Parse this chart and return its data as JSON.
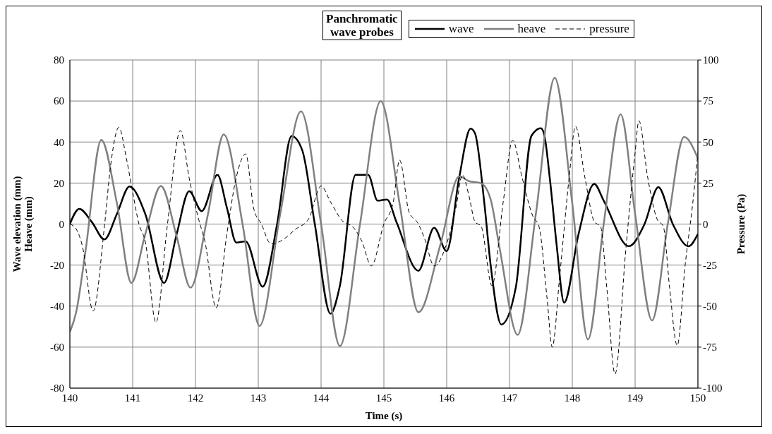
{
  "chart_data": {
    "type": "line",
    "title": "Panchromatic\nwave probes",
    "xlabel": "Time (s)",
    "ylabel": "Wave elevation (mm)\nHeave (mm)",
    "y2label": "Pressure (Pa)",
    "xlim": [
      140,
      150
    ],
    "xticks": [
      140,
      141,
      142,
      143,
      144,
      145,
      146,
      147,
      148,
      149,
      150
    ],
    "ylim": [
      -80,
      80
    ],
    "yticks": [
      -80,
      -60,
      -40,
      -20,
      0,
      20,
      40,
      60,
      80
    ],
    "y2lim": [
      -100,
      100
    ],
    "y2ticks": [
      -100,
      -75,
      -50,
      -25,
      0,
      25,
      50,
      75,
      100
    ],
    "grid": true,
    "legend": "top",
    "marker": "none",
    "series": [
      {
        "name": "wave",
        "color": "#000000",
        "line_style": "solid",
        "x": [
          140,
          140.15,
          140.35,
          140.55,
          140.75,
          140.95,
          141.2,
          141.5,
          141.7,
          141.9,
          142.1,
          142.35,
          142.5,
          142.65,
          142.8,
          143.07,
          143.3,
          143.53,
          143.7,
          143.9,
          144.15,
          144.3,
          144.55,
          144.75,
          144.9,
          145.05,
          145.2,
          145.55,
          145.8,
          146.0,
          146.2,
          146.38,
          146.45,
          146.6,
          146.7,
          146.87,
          147.1,
          147.35,
          147.5,
          147.55,
          147.65,
          147.75,
          147.87,
          148.1,
          148.35,
          148.5,
          148.9,
          149.15,
          149.37,
          149.6,
          149.85,
          150
        ],
        "values": [
          0,
          7.4,
          1,
          -7.5,
          5,
          18.3,
          5,
          -28.7,
          -5,
          16,
          6.3,
          24,
          8,
          -9,
          -8.4,
          -30.5,
          0,
          42.9,
          36,
          0,
          -43.7,
          -30,
          24,
          24,
          11.4,
          12,
          1,
          -22.8,
          -1.8,
          -13.2,
          22.8,
          46.5,
          44.3,
          10,
          -20,
          -49,
          -31,
          43,
          46.7,
          44,
          20,
          -10,
          -38.3,
          -4.8,
          19.5,
          11.4,
          -10.8,
          0,
          18,
          0,
          -10.8,
          -4.8
        ]
      },
      {
        "name": "heave",
        "color": "#808080",
        "line_style": "solid",
        "x": [
          140,
          140.1,
          140.25,
          140.5,
          140.75,
          140.98,
          141.2,
          141.45,
          141.7,
          141.92,
          142.2,
          142.45,
          142.75,
          143.02,
          143.35,
          143.68,
          144.0,
          144.3,
          144.62,
          144.95,
          145.25,
          145.55,
          145.9,
          146.2,
          146.35,
          146.55,
          146.7,
          146.85,
          147.13,
          147.42,
          147.72,
          148.0,
          148.25,
          148.5,
          148.77,
          149.0,
          149.27,
          149.52,
          149.78,
          150
        ],
        "values": [
          -52.7,
          -43,
          -13,
          41,
          10,
          -28.7,
          -5,
          18.6,
          -6,
          -31,
          5,
          43.7,
          0,
          -49.7,
          5,
          55,
          0,
          -59.5,
          0,
          60,
          10,
          -43,
          -10,
          23.2,
          21,
          19.8,
          12,
          -13,
          -54,
          5,
          71.3,
          10,
          -56.3,
          0,
          53.5,
          5,
          -47,
          0,
          42.5,
          32
        ]
      },
      {
        "name": "pressure",
        "color": "#000000",
        "line_style": "dashed",
        "axis": "y2",
        "x": [
          140,
          140.1,
          140.2,
          140.37,
          140.55,
          140.65,
          140.78,
          140.9,
          141.0,
          141.1,
          141.2,
          141.37,
          141.55,
          141.76,
          141.9,
          142.05,
          142.15,
          142.33,
          142.5,
          142.65,
          142.8,
          142.93,
          143.05,
          143.2,
          143.35,
          143.6,
          143.8,
          144.0,
          144.15,
          144.35,
          144.5,
          144.65,
          144.8,
          145.0,
          145.15,
          145.25,
          145.4,
          145.55,
          145.65,
          145.8,
          146.0,
          146.15,
          146.25,
          146.35,
          146.45,
          146.55,
          146.72,
          146.9,
          147.05,
          147.2,
          147.37,
          147.47,
          147.6,
          147.68,
          147.8,
          147.95,
          148.05,
          148.2,
          148.35,
          148.45,
          148.55,
          148.68,
          148.85,
          149.0,
          149.06,
          149.2,
          149.35,
          149.45,
          149.55,
          149.67,
          149.8,
          149.92,
          150
        ],
        "values": [
          0,
          -3,
          -13.5,
          -53,
          -1.5,
          36,
          58.9,
          40,
          19.5,
          0,
          -10.5,
          -60,
          -1.5,
          57,
          28,
          3,
          -10.5,
          -51,
          -6,
          28.5,
          42.7,
          9,
          0,
          -12,
          -10.5,
          -3,
          3,
          23.2,
          13.5,
          1.5,
          -1.5,
          -10.5,
          -25.5,
          0,
          13.5,
          39,
          7.5,
          0,
          -9,
          -25.5,
          -12,
          10.5,
          30,
          18,
          1.5,
          -1.5,
          -37.5,
          13.5,
          51,
          28.5,
          5,
          -1.5,
          -46,
          -75,
          -31.5,
          28.5,
          59.6,
          28.5,
          1.5,
          -1.5,
          -39,
          -91.4,
          -16.5,
          43.5,
          63,
          28.5,
          3,
          -1.5,
          -39,
          -74,
          -24,
          13.5,
          43.5
        ]
      }
    ]
  }
}
